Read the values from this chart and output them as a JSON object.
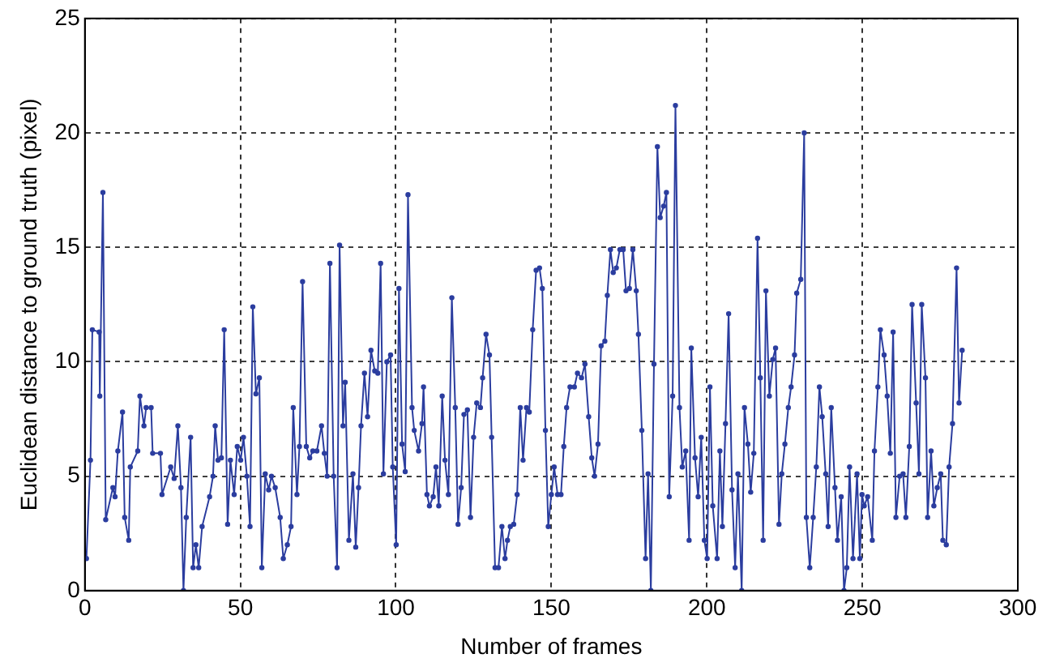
{
  "chart_data": {
    "type": "line",
    "xlabel": "Number of frames",
    "ylabel": "Euclidean distance to ground truth (pixel)",
    "color": "#2b3d9f",
    "marker": "circle",
    "line_style": "solid",
    "grid": true,
    "xlim": [
      0,
      300
    ],
    "xticks": [
      0,
      50,
      100,
      150,
      200,
      250,
      300
    ],
    "ylim": [
      0,
      25
    ],
    "yticks": [
      0,
      5,
      10,
      15,
      20,
      25
    ],
    "x": [
      0.5,
      1.8,
      2.4,
      4.6,
      4.8,
      5.8,
      6.7,
      9.0,
      9.7,
      10.6,
      12.1,
      12.8,
      14.1,
      14.6,
      17.0,
      17.7,
      19.0,
      19.7,
      21.3,
      21.8,
      24.3,
      24.8,
      27.6,
      28.7,
      29.9,
      30.9,
      31.7,
      32.6,
      34.0,
      34.8,
      35.7,
      36.6,
      37.7,
      40.1,
      41.2,
      41.9,
      42.8,
      43.9,
      44.8,
      45.9,
      46.8,
      48.0,
      49.0,
      50.1,
      51.0,
      52.1,
      53.1,
      54.0,
      55.0,
      56.1,
      56.9,
      58.0,
      59.1,
      60.0,
      61.2,
      62.8,
      63.8,
      65.1,
      66.3,
      67.0,
      68.2,
      69.0,
      70.0,
      71.2,
      72.3,
      73.3,
      74.6,
      76.1,
      77.0,
      77.9,
      78.8,
      80.0,
      81.1,
      81.9,
      83.0,
      83.7,
      84.9,
      86.2,
      87.1,
      88.0,
      88.8,
      89.9,
      90.9,
      92.0,
      93.2,
      94.2,
      95.1,
      96.0,
      97.1,
      98.3,
      99.0,
      100.1,
      101.0,
      102.0,
      103.0,
      103.9,
      105.2,
      105.9,
      107.3,
      108.4,
      108.9,
      110.0,
      110.8,
      112.0,
      112.9,
      113.8,
      114.9,
      115.8,
      116.9,
      118.0,
      119.1,
      120.0,
      121.0,
      121.9,
      123.0,
      124.0,
      125.0,
      126.0,
      127.2,
      127.9,
      129.0,
      130.1,
      130.8,
      131.9,
      133.0,
      134.1,
      135.1,
      135.9,
      136.8,
      137.9,
      139.0,
      140.0,
      140.9,
      142.0,
      142.9,
      144.0,
      145.1,
      146.2,
      147.1,
      148.1,
      149.0,
      150.0,
      150.9,
      152.0,
      153.1,
      154.0,
      154.9,
      156.0,
      157.4,
      158.4,
      159.7,
      160.8,
      162.0,
      163.0,
      163.9,
      165.0,
      166.0,
      167.2,
      168.0,
      169.0,
      169.9,
      170.9,
      172.0,
      173.1,
      174.0,
      175.1,
      176.2,
      177.3,
      178.0,
      179.1,
      180.3,
      181.1,
      182.0,
      183.0,
      184.1,
      185.0,
      186.1,
      187.0,
      187.9,
      189.0,
      189.9,
      191.2,
      192.1,
      193.2,
      194.3,
      195.0,
      196.2,
      197.2,
      198.2,
      199.2,
      200.1,
      201.0,
      201.9,
      203.3,
      204.2,
      205.0,
      206.0,
      207.0,
      208.1,
      209.1,
      210.0,
      211.2,
      212.1,
      213.2,
      214.1,
      215.1,
      216.3,
      217.2,
      218.1,
      219.0,
      220.1,
      221.2,
      222.1,
      223.2,
      224.1,
      225.1,
      226.2,
      227.1,
      228.2,
      228.9,
      230.2,
      231.3,
      232.0,
      233.1,
      234.2,
      235.2,
      236.2,
      237.1,
      238.2,
      239.0,
      240.0,
      241.2,
      242.0,
      243.2,
      244.1,
      245.0,
      245.9,
      247.0,
      248.3,
      249.2,
      249.9,
      250.6,
      251.7,
      253.2,
      253.9,
      255.0,
      255.8,
      257.0,
      258.0,
      259.0,
      259.9,
      260.8,
      262.0,
      263.1,
      264.0,
      265.1,
      266.0,
      267.3,
      268.2,
      269.1,
      270.3,
      271.0,
      272.1,
      273.0,
      274.1,
      275.2,
      275.9,
      277.0,
      277.9,
      279.0,
      280.3,
      281.1,
      282.1
    ],
    "values": [
      1.4,
      5.7,
      11.4,
      11.3,
      8.5,
      17.4,
      3.1,
      4.5,
      4.1,
      6.1,
      7.8,
      3.2,
      2.2,
      5.4,
      6.1,
      8.5,
      7.2,
      8.0,
      8.0,
      6.0,
      6.0,
      4.2,
      5.4,
      4.9,
      7.2,
      4.5,
      0,
      3.2,
      6.7,
      1.0,
      2.0,
      1.0,
      2.8,
      4.1,
      5.0,
      7.2,
      5.7,
      5.8,
      11.4,
      2.9,
      5.7,
      4.2,
      6.3,
      5.7,
      6.7,
      5.0,
      2.8,
      12.4,
      8.6,
      9.3,
      1.0,
      5.1,
      4.4,
      5.0,
      4.5,
      3.2,
      1.4,
      2.0,
      2.8,
      8.0,
      4.2,
      6.3,
      13.5,
      6.3,
      5.8,
      6.1,
      6.1,
      7.2,
      6.0,
      5.0,
      14.3,
      5.0,
      1.0,
      15.1,
      7.2,
      9.1,
      2.2,
      5.1,
      1.9,
      4.5,
      7.2,
      9.5,
      7.6,
      10.5,
      9.6,
      9.5,
      14.3,
      5.1,
      10.0,
      10.3,
      5.4,
      2.0,
      13.2,
      6.4,
      5.2,
      17.3,
      8.0,
      7.0,
      6.1,
      7.3,
      8.9,
      4.2,
      3.7,
      4.1,
      5.4,
      3.7,
      8.5,
      5.7,
      4.2,
      12.8,
      8.0,
      2.9,
      4.5,
      7.7,
      7.9,
      3.2,
      6.7,
      8.2,
      8.0,
      9.3,
      11.2,
      10.3,
      6.7,
      1.0,
      1.0,
      2.8,
      1.4,
      2.2,
      2.8,
      2.9,
      4.2,
      8.0,
      5.7,
      8.0,
      7.8,
      11.4,
      14.0,
      14.1,
      13.2,
      7.0,
      2.8,
      4.2,
      5.4,
      4.2,
      4.2,
      6.3,
      8.0,
      8.9,
      8.9,
      9.5,
      9.3,
      9.9,
      7.6,
      5.8,
      5.0,
      6.4,
      10.7,
      10.9,
      12.9,
      14.9,
      13.9,
      14.1,
      14.9,
      14.9,
      13.1,
      13.2,
      14.9,
      13.1,
      11.2,
      7.0,
      1.4,
      5.1,
      0,
      9.9,
      19.4,
      16.3,
      16.8,
      17.4,
      4.1,
      8.5,
      21.2,
      8.0,
      5.4,
      6.1,
      2.2,
      10.6,
      5.8,
      4.1,
      6.7,
      2.2,
      1.4,
      8.9,
      3.7,
      1.4,
      6.1,
      2.8,
      7.3,
      12.1,
      4.4,
      1.0,
      5.1,
      0,
      8.0,
      6.4,
      4.3,
      6.0,
      15.4,
      9.3,
      2.2,
      13.1,
      8.5,
      10.1,
      10.6,
      2.9,
      5.1,
      6.4,
      8.0,
      8.9,
      10.3,
      13.0,
      13.6,
      20.0,
      3.2,
      1.0,
      3.2,
      5.4,
      8.9,
      7.6,
      5.1,
      2.8,
      8.0,
      4.5,
      2.2,
      4.1,
      0,
      1.0,
      5.4,
      1.4,
      5.1,
      1.4,
      4.2,
      3.7,
      4.1,
      2.2,
      6.1,
      8.9,
      11.4,
      10.3,
      8.5,
      6.0,
      11.3,
      3.2,
      5.0,
      5.1,
      3.2,
      6.3,
      12.5,
      8.2,
      5.1,
      12.5,
      9.3,
      3.2,
      6.1,
      3.7,
      4.5,
      5.1,
      2.2,
      2.0,
      5.4,
      7.3,
      14.1,
      8.2,
      10.5
    ]
  }
}
